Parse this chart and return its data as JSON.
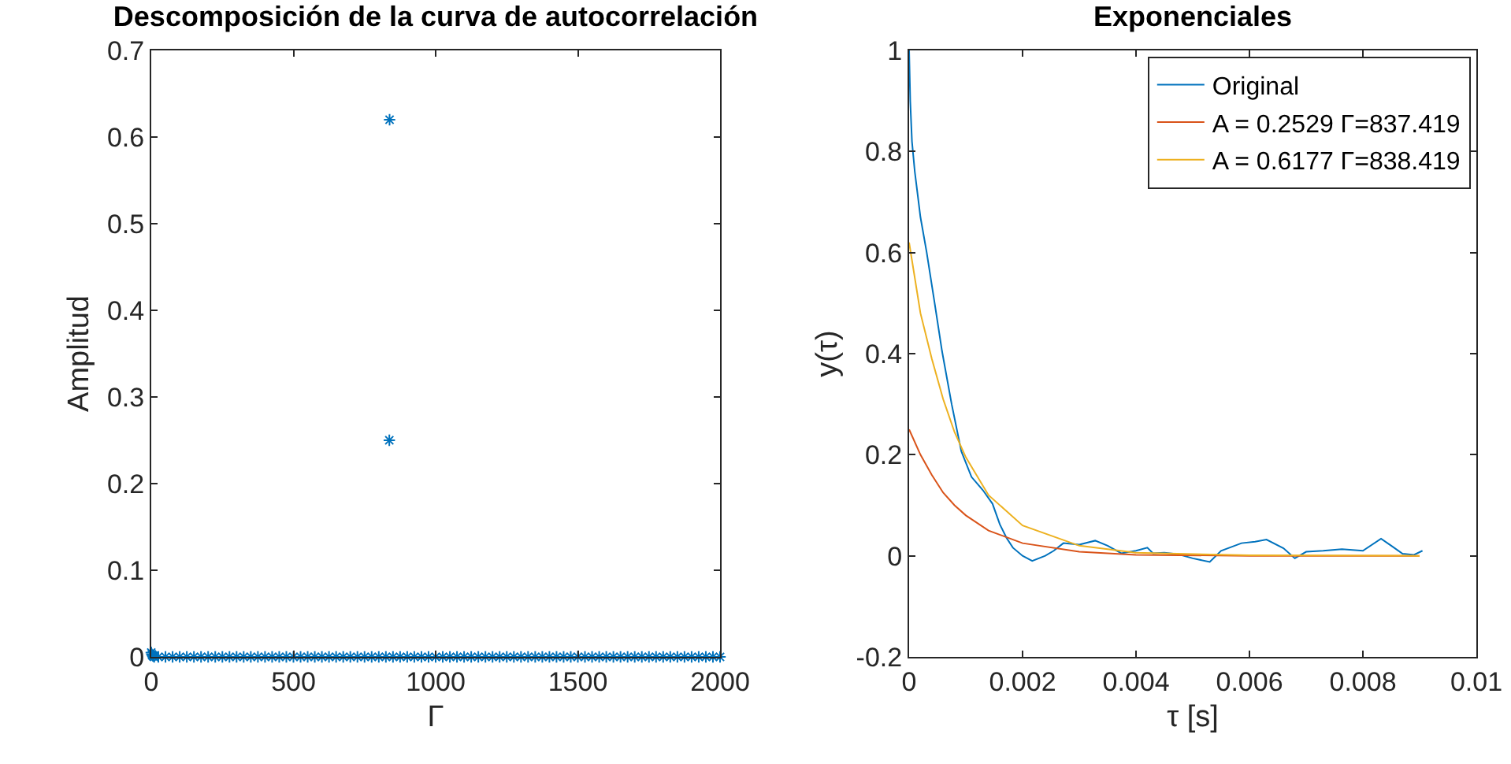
{
  "chart_data": [
    {
      "type": "scatter",
      "title": "Descomposición de la curva de autocorrelación",
      "xlabel": "Γ",
      "ylabel": "Amplitud",
      "x": [
        0,
        2,
        4,
        6,
        8,
        10,
        25,
        50,
        75,
        100,
        125,
        150,
        175,
        200,
        225,
        250,
        275,
        300,
        325,
        350,
        375,
        400,
        425,
        450,
        475,
        500,
        525,
        550,
        575,
        600,
        625,
        650,
        675,
        700,
        725,
        750,
        775,
        800,
        825,
        837,
        838,
        850,
        875,
        900,
        925,
        950,
        975,
        1000,
        1025,
        1050,
        1075,
        1100,
        1125,
        1150,
        1175,
        1200,
        1225,
        1250,
        1275,
        1300,
        1325,
        1350,
        1375,
        1400,
        1425,
        1450,
        1475,
        1500,
        1525,
        1550,
        1575,
        1600,
        1625,
        1650,
        1675,
        1700,
        1725,
        1750,
        1775,
        1800,
        1825,
        1850,
        1875,
        1900,
        1925,
        1950,
        1975,
        2000
      ],
      "values": [
        0.005,
        0.003,
        0.002,
        0.001,
        0.001,
        0,
        0,
        0,
        0,
        0,
        0,
        0,
        0,
        0,
        0,
        0,
        0,
        0,
        0,
        0,
        0,
        0,
        0,
        0,
        0,
        0,
        0,
        0,
        0,
        0,
        0,
        0,
        0,
        0,
        0,
        0,
        0,
        0,
        0,
        0.25,
        0.62,
        0,
        0,
        0,
        0,
        0,
        0,
        0,
        0,
        0,
        0,
        0,
        0,
        0,
        0,
        0,
        0,
        0,
        0,
        0,
        0,
        0,
        0,
        0,
        0,
        0,
        0,
        0,
        0,
        0,
        0,
        0,
        0,
        0,
        0,
        0,
        0,
        0,
        0,
        0,
        0,
        0,
        0,
        0,
        0,
        0,
        0,
        0
      ],
      "color": "#0072bd",
      "marker": "cross",
      "xlim": [
        0,
        2000
      ],
      "xticks": [
        0,
        500,
        1000,
        1500,
        2000
      ],
      "ylim": [
        0,
        0.7
      ],
      "yticks": [
        0,
        0.1,
        0.2,
        0.3,
        0.4,
        0.5,
        0.6,
        0.7
      ],
      "grid": false,
      "legend": false
    },
    {
      "type": "line",
      "title": "Exponenciales",
      "xlabel": "τ [s]",
      "ylabel": "y(τ)",
      "series": [
        {
          "name": "Original",
          "color": "#0072bd",
          "x": [
            0,
            2e-05,
            5e-05,
            0.0001,
            0.0002,
            0.00031,
            0.00045,
            0.00058,
            0.00075,
            0.00092,
            0.0011,
            0.0013,
            0.00147,
            0.0016,
            0.00172,
            0.00183,
            0.002,
            0.00217,
            0.0024,
            0.00255,
            0.00272,
            0.003,
            0.00328,
            0.0035,
            0.00374,
            0.004,
            0.0042,
            0.0043,
            0.0045,
            0.00475,
            0.005,
            0.0053,
            0.0055,
            0.00586,
            0.0061,
            0.0063,
            0.0066,
            0.0068,
            0.007,
            0.0073,
            0.00763,
            0.008,
            0.00832,
            0.0085,
            0.0087,
            0.0089,
            0.00905
          ],
          "values": [
            1,
            0.9,
            0.82,
            0.76,
            0.67,
            0.6,
            0.5,
            0.405,
            0.3,
            0.207,
            0.156,
            0.13,
            0.103,
            0.062,
            0.035,
            0.016,
            0.0,
            -0.01,
            0.0,
            0.01,
            0.025,
            0.022,
            0.03,
            0.02,
            0.005,
            0.01,
            0.016,
            0.005,
            0.006,
            0.003,
            -0.005,
            -0.012,
            0.01,
            0.025,
            0.028,
            0.032,
            0.015,
            -0.005,
            0.008,
            0.01,
            0.013,
            0.01,
            0.034,
            0.02,
            0.004,
            0.002,
            0.01
          ]
        },
        {
          "name": "A = 0.2529 Γ=837.419",
          "color": "#d95319",
          "x": [
            0,
            0.0002,
            0.0004,
            0.0006,
            0.0008,
            0.001,
            0.0014,
            0.002,
            0.003,
            0.004,
            0.006,
            0.009
          ],
          "values": [
            0.25,
            0.2,
            0.16,
            0.125,
            0.1,
            0.08,
            0.05,
            0.025,
            0.008,
            0.002,
            0,
            0
          ]
        },
        {
          "name": "A = 0.6177 Γ=838.419",
          "color": "#edb120",
          "x": [
            0,
            0.0002,
            0.0004,
            0.0006,
            0.0008,
            0.001,
            0.0014,
            0.002,
            0.003,
            0.004,
            0.006,
            0.009
          ],
          "values": [
            0.62,
            0.48,
            0.39,
            0.31,
            0.245,
            0.195,
            0.12,
            0.06,
            0.02,
            0.006,
            0.001,
            0
          ]
        }
      ],
      "xlim": [
        0,
        0.01
      ],
      "xticks": [
        0,
        0.002,
        0.004,
        0.006,
        0.008,
        0.01
      ],
      "ylim": [
        -0.2,
        1
      ],
      "yticks": [
        -0.2,
        0,
        0.2,
        0.4,
        0.6,
        0.8,
        1
      ],
      "grid": false,
      "legend": "top right",
      "marker": "none",
      "line_style": "solid"
    }
  ]
}
